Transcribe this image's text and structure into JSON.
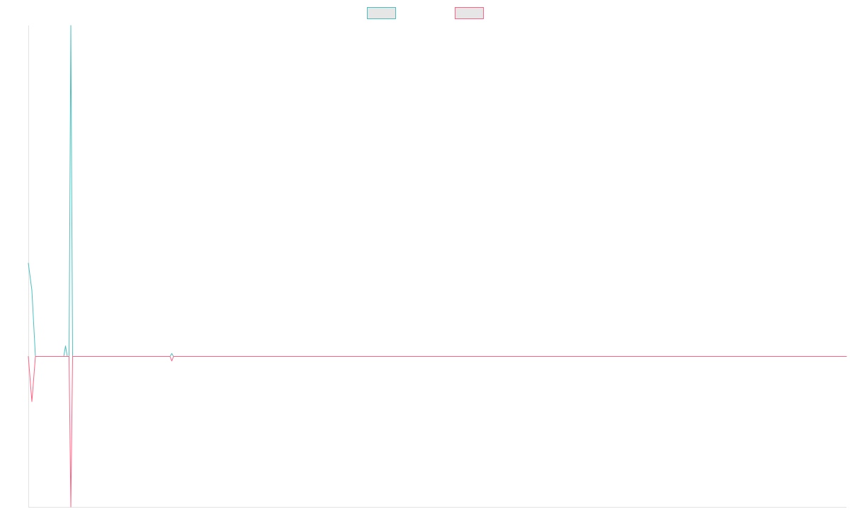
{
  "chart_data": {
    "type": "line",
    "title": "",
    "xlabel": "",
    "ylabel": "",
    "grid": false,
    "legend": "top-center",
    "xlim": [
      0,
      231
    ],
    "ylim": [
      -1,
      2.2
    ],
    "series": [
      {
        "color": "#4bc0c0",
        "fill": "#e6e6e6",
        "points": [
          [
            0,
            0.62
          ],
          [
            1,
            0.44
          ],
          [
            2,
            0.0
          ],
          [
            10,
            0.0
          ],
          [
            10.5,
            0.07
          ],
          [
            11,
            0.0
          ],
          [
            11.5,
            0.0
          ],
          [
            12,
            2.2
          ],
          [
            12.5,
            0.0
          ],
          [
            40,
            0.0
          ],
          [
            40.5,
            0.02
          ],
          [
            41,
            0.0
          ],
          [
            231,
            0.0
          ]
        ]
      },
      {
        "color": "#ff6384",
        "fill": "#e6e6e6",
        "points": [
          [
            0,
            0.0
          ],
          [
            1,
            -0.3
          ],
          [
            2,
            0.0
          ],
          [
            11.5,
            0.0
          ],
          [
            12,
            -1.0
          ],
          [
            12.5,
            0.0
          ],
          [
            40,
            0.0
          ],
          [
            40.5,
            -0.03
          ],
          [
            41,
            0.0
          ],
          [
            231,
            0.0
          ]
        ]
      }
    ]
  }
}
